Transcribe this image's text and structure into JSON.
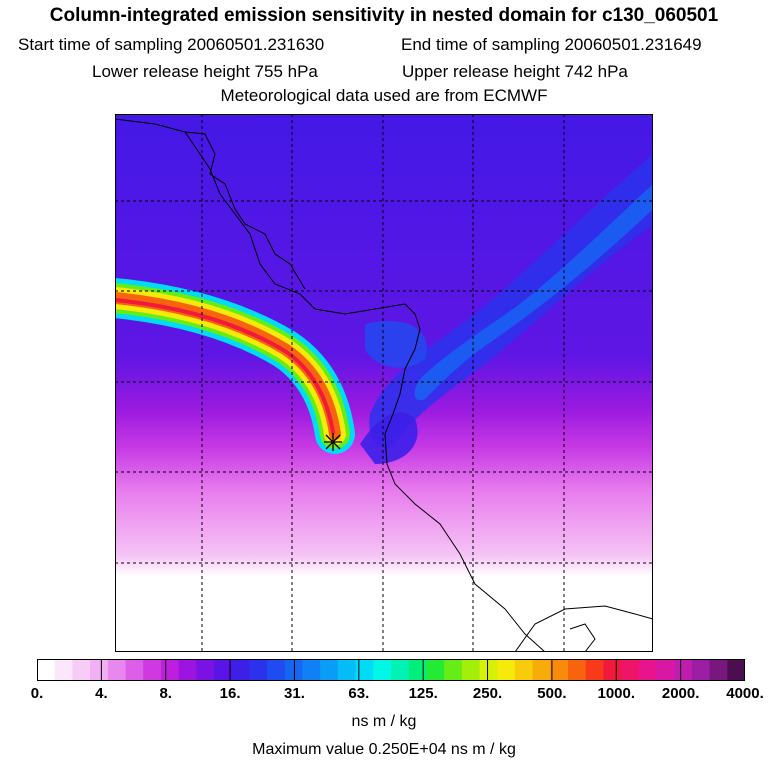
{
  "header": {
    "title": "Column-integrated emission sensitivity in nested domain for c130_060501",
    "start_label": "Start time of sampling 20060501.231630",
    "end_label": "End time of sampling 20060501.231649",
    "lower_label": "Lower release height  755 hPa",
    "upper_label": "Upper release height  742 hPa",
    "met_label": "Meteorological data used are from ECMWF"
  },
  "colorbar": {
    "tick_labels": [
      "0.",
      "4.",
      "8.",
      "16.",
      "31.",
      "63.",
      "125.",
      "250.",
      "500.",
      "1000.",
      "2000.",
      "4000."
    ],
    "colors": [
      "#ffffff",
      "#fbe6fb",
      "#f7ccf7",
      "#f1b0f3",
      "#e888ef",
      "#dd5fe8",
      "#cf3ae0",
      "#bd1fdc",
      "#9b14e0",
      "#7a12e4",
      "#5a14e6",
      "#3d1fe8",
      "#2a32ec",
      "#1f4cf0",
      "#1766f2",
      "#1180f4",
      "#0a9df6",
      "#04bcf6",
      "#00dcf6",
      "#00f6e6",
      "#00f2b4",
      "#00ee7a",
      "#24ea36",
      "#66ec16",
      "#a4ee0c",
      "#d6f00a",
      "#f6ea0a",
      "#f8cc0a",
      "#f8ac0a",
      "#f88a0c",
      "#f8640e",
      "#f83a1a",
      "#f01a3c",
      "#ee1468",
      "#e8148e",
      "#d818a4",
      "#c01cae",
      "#9c1ea4",
      "#78187e",
      "#4c0e50"
    ],
    "units": "ns m / kg"
  },
  "footer": {
    "max_value": "Maximum value  0.250E+04 ns m / kg"
  },
  "map": {
    "release_marker": "star-marker",
    "colors": {
      "background": "#5a14e6",
      "deep": "#3d1fe8",
      "blue": "#1f4cf0",
      "light": "#1180f4"
    }
  }
}
